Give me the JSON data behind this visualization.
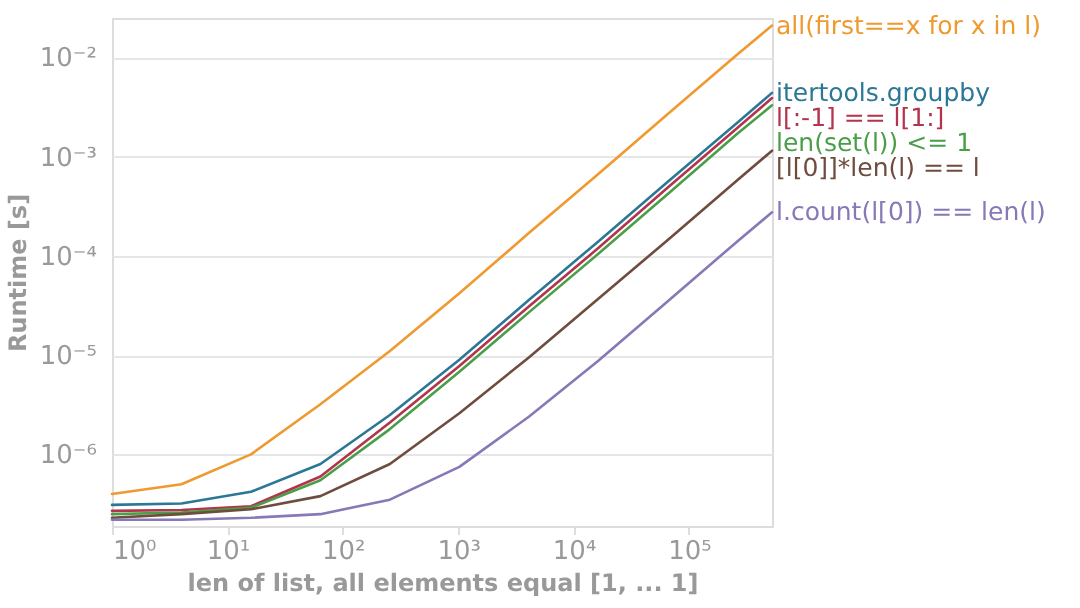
{
  "chart_data": {
    "type": "line",
    "xlabel": "len of list, all elements equal [1, ... 1]",
    "ylabel": "Runtime [s]",
    "x": [
      1,
      4,
      16,
      64,
      256,
      1024,
      4096,
      16384,
      65536,
      262144,
      524288
    ],
    "series": [
      {
        "name": "all(first==x for x in l)",
        "color": "#ef9a2f",
        "values": [
          4e-07,
          5e-07,
          1e-06,
          3.2e-06,
          1.1e-05,
          4.2e-05,
          0.00017,
          0.00067,
          0.0027,
          0.0107,
          0.021
        ]
      },
      {
        "name": "itertools.groupby",
        "color": "#2b7896",
        "values": [
          3.1e-07,
          3.2e-07,
          4.2e-07,
          8e-07,
          2.5e-06,
          9e-06,
          3.6e-05,
          0.00014,
          0.00056,
          0.0022,
          0.0044
        ]
      },
      {
        "name": "l[:-1] == l[1:]",
        "color": "#b3344d",
        "values": [
          2.7e-07,
          2.75e-07,
          3e-07,
          6e-07,
          2.1e-06,
          7.8e-06,
          3.1e-05,
          0.00012,
          0.00049,
          0.00195,
          0.0039
        ]
      },
      {
        "name": "len(set(l)) <= 1",
        "color": "#4a9e48",
        "values": [
          2.5e-07,
          2.6e-07,
          2.9e-07,
          5.5e-07,
          1.8e-06,
          6.8e-06,
          2.7e-05,
          0.000105,
          0.00042,
          0.0017,
          0.0033
        ]
      },
      {
        "name": "[l[0]]*len(l) == l",
        "color": "#6e4c3e",
        "values": [
          2.3e-07,
          2.5e-07,
          2.8e-07,
          3.8e-07,
          8e-07,
          2.6e-06,
          9.5e-06,
          3.7e-05,
          0.000145,
          0.00058,
          0.00115
        ]
      },
      {
        "name": "l.count(l[0]) == len(l)",
        "color": "#8878b6",
        "values": [
          2.2e-07,
          2.2e-07,
          2.3e-07,
          2.5e-07,
          3.5e-07,
          7.5e-07,
          2.4e-06,
          8.8e-06,
          3.5e-05,
          0.00014,
          0.000275
        ]
      }
    ],
    "log": "xy",
    "grid": "y",
    "legend": false,
    "xlim": [
      1,
      524288
    ],
    "ylim": [
      1.9e-07,
      0.025
    ],
    "xticks": [
      {
        "value": 1,
        "label": "10⁰"
      },
      {
        "value": 10,
        "label": "10¹"
      },
      {
        "value": 100,
        "label": "10²"
      },
      {
        "value": 1000,
        "label": "10³"
      },
      {
        "value": 10000,
        "label": "10⁴"
      },
      {
        "value": 100000,
        "label": "10⁵"
      }
    ],
    "yticks": [
      {
        "value": 1e-06,
        "label": "10⁻⁶"
      },
      {
        "value": 1e-05,
        "label": "10⁻⁵"
      },
      {
        "value": 0.0001,
        "label": "10⁻⁴"
      },
      {
        "value": 0.001,
        "label": "10⁻³"
      },
      {
        "value": 0.01,
        "label": "10⁻²"
      }
    ]
  }
}
